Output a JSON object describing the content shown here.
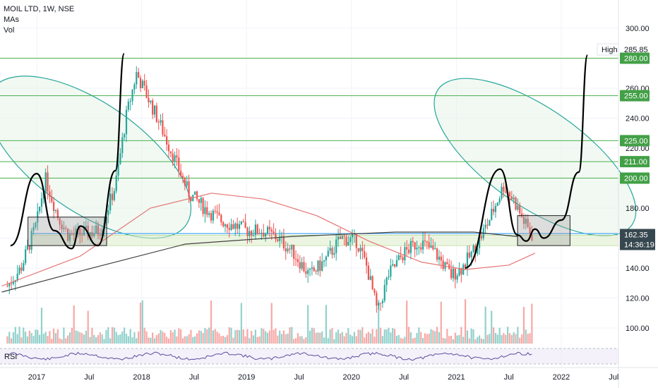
{
  "legend": {
    "title": "MOIL LTD, 1W, NSE",
    "line2": "MAs",
    "line3": "Vol"
  },
  "high_label": "High",
  "high_value": "285.85",
  "price_tag": "162.35",
  "time_tag": "14:36:19",
  "rsi_label": "RSI",
  "colors": {
    "up": "#26a69a",
    "down": "#ef5350",
    "level_line": "#4caf50",
    "level_tag": "#43a047",
    "ellipse": "#26a69a",
    "ellipse_fill": "#e8f5e9",
    "ma_red": "#e57373",
    "ma_dark": "#424242",
    "blue_line": "#64b5f6",
    "rsi_line": "#5c4d9e",
    "rsi_band": "#ede7f6",
    "price_tag_bg": "#37474f"
  },
  "chart_data": {
    "type": "candlestick",
    "title": "MOIL LTD, 1W, NSE",
    "ylim": [
      88,
      305
    ],
    "y_ticks": [
      100,
      120,
      140,
      160,
      180,
      200,
      220,
      240,
      260,
      280,
      300
    ],
    "y_tick_labels": [
      "100.00",
      "120.00",
      "140.00",
      "160.00",
      "180.00",
      "200.00",
      "220.00",
      "240.00",
      "260.00",
      "280.00",
      "300.00"
    ],
    "x_ticks": [
      "2017",
      "Jul",
      "2018",
      "Jul",
      "2019",
      "Jul",
      "2020",
      "Jul",
      "2021",
      "Jul",
      "2022",
      "Jul"
    ],
    "x_range": [
      "2016-09",
      "2022-08"
    ],
    "levels": [
      280,
      255,
      225,
      211,
      200
    ],
    "level_labels": [
      "280.00",
      "255.00",
      "225.00",
      "211.00",
      "200.00"
    ],
    "current_price": 162.35,
    "high": 285.85,
    "support_zone": [
      155,
      162
    ],
    "blue_line": 163,
    "ellipses": [
      {
        "date_start": "2016-09",
        "date_end": "2018-05",
        "price_low": 131,
        "price_high": 297
      },
      {
        "date_start": "2021-01",
        "date_end": "2022-07",
        "price_low": 131,
        "price_high": 297
      }
    ],
    "boxes": [
      {
        "date_start": "2016-12",
        "date_end": "2017-09",
        "price_low": 155,
        "price_high": 174
      },
      {
        "date_start": "2021-08",
        "date_end": "2022-02",
        "price_low": 155,
        "price_high": 175
      }
    ],
    "projection_paths": [
      {
        "points": [
          [
            "2016-10",
            155
          ],
          [
            "2017-01",
            203
          ],
          [
            "2017-03",
            165
          ],
          [
            "2017-05",
            153
          ],
          [
            "2017-06",
            168
          ],
          [
            "2017-08",
            155
          ],
          [
            "2017-10",
            205
          ],
          [
            "2017-11",
            283
          ]
        ]
      },
      {
        "points": [
          [
            "2021-02",
            140
          ],
          [
            "2021-06",
            206
          ],
          [
            "2021-08",
            162
          ],
          [
            "2021-09",
            158
          ],
          [
            "2021-10",
            166
          ],
          [
            "2021-11",
            160
          ],
          [
            "2022-01",
            172
          ],
          [
            "2022-03",
            204
          ],
          [
            "2022-04",
            282
          ]
        ]
      }
    ],
    "moving_averages": [
      {
        "name": "MA red",
        "points": [
          [
            "2016-09",
            128
          ],
          [
            "2017-06",
            148
          ],
          [
            "2018-02",
            180
          ],
          [
            "2018-09",
            190
          ],
          [
            "2019-03",
            186
          ],
          [
            "2019-09",
            175
          ],
          [
            "2020-03",
            158
          ],
          [
            "2020-09",
            144
          ],
          [
            "2021-02",
            139
          ],
          [
            "2021-07",
            142
          ],
          [
            "2021-10",
            150
          ]
        ]
      },
      {
        "name": "MA dark",
        "points": [
          [
            "2016-09",
            124
          ],
          [
            "2017-06",
            138
          ],
          [
            "2018-06",
            156
          ],
          [
            "2019-06",
            161
          ],
          [
            "2020-06",
            164
          ],
          [
            "2021-03",
            164
          ],
          [
            "2021-08",
            161
          ]
        ]
      }
    ]
  }
}
